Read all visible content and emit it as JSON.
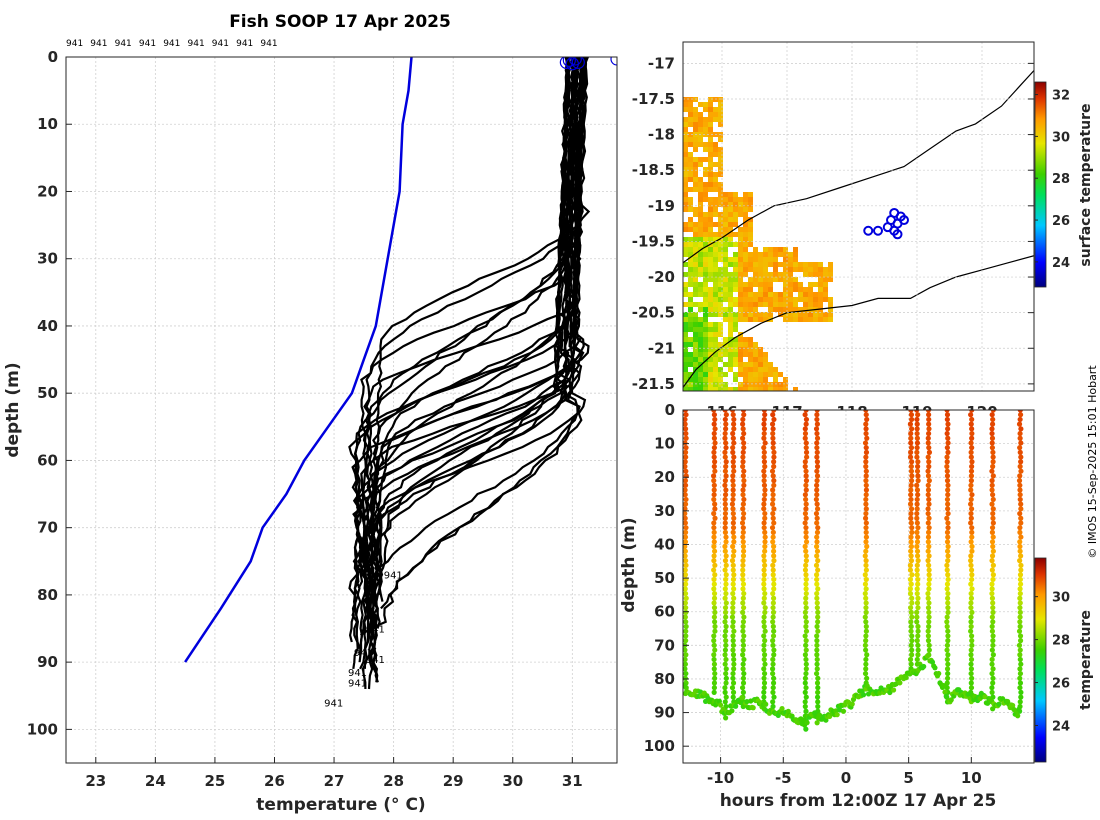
{
  "figure": {
    "title": "Fish SOOP 17 Apr 2025",
    "credit": "© IMOS 15-Sep-2025 15:01 Hobart",
    "colors": {
      "profile": "#000000",
      "climatology": "#0000dd",
      "markers": "#0000dd",
      "coast": "#000000"
    }
  },
  "chart_data": [
    {
      "type": "line",
      "name": "profiles",
      "title": "Fish SOOP 17 Apr 2025",
      "xlabel": "temperature (° C)",
      "ylabel": "depth (m)",
      "xlim": [
        22.5,
        31.75
      ],
      "ylim": [
        105,
        0
      ],
      "xticks": [
        "23",
        "24",
        "25",
        "26",
        "27",
        "28",
        "29",
        "30",
        "31"
      ],
      "yticks": [
        "0",
        "10",
        "20",
        "30",
        "40",
        "50",
        "60",
        "70",
        "80",
        "90",
        "100"
      ],
      "grid": true,
      "top_labels": [
        "941",
        "941",
        "941",
        "941",
        "941",
        "941",
        "941",
        "941",
        "941"
      ],
      "end_labels": [
        {
          "text": "941",
          "t": 27.8,
          "d": 77
        },
        {
          "text": "941",
          "t": 27.5,
          "d": 85
        },
        {
          "text": "941",
          "t": 27.3,
          "d": 88.5
        },
        {
          "text": "941",
          "t": 27.5,
          "d": 89.5
        },
        {
          "text": "941",
          "t": 27.2,
          "d": 91.5
        },
        {
          "text": "941",
          "t": 27.2,
          "d": 93
        },
        {
          "text": "941",
          "t": 26.8,
          "d": 96
        }
      ],
      "climatology": {
        "name": "climatology",
        "points": [
          [
            28.3,
            0
          ],
          [
            28.25,
            5
          ],
          [
            28.15,
            10
          ],
          [
            28.1,
            20
          ],
          [
            27.9,
            30
          ],
          [
            27.7,
            40
          ],
          [
            27.5,
            45
          ],
          [
            27.3,
            50
          ],
          [
            26.9,
            55
          ],
          [
            26.5,
            60
          ],
          [
            26.2,
            65
          ],
          [
            25.8,
            70
          ],
          [
            25.6,
            75
          ],
          [
            25.1,
            82
          ],
          [
            24.5,
            90
          ]
        ]
      },
      "profile_count": 28,
      "surface_markers": [
        [
          30.95,
          0.5
        ],
        [
          31.05,
          0.3
        ],
        [
          31.1,
          0.8
        ],
        [
          30.9,
          0.8
        ],
        [
          31.0,
          1.0
        ],
        [
          31.75,
          0.3
        ]
      ]
    },
    {
      "type": "heatmap",
      "name": "map",
      "xlabel": "",
      "ylabel": "",
      "xlim": [
        115.4,
        120.8
      ],
      "ylim": [
        -21.6,
        -16.7
      ],
      "xticks": [
        "116",
        "117",
        "118",
        "119",
        "120"
      ],
      "yticks": [
        "-17",
        "-17.5",
        "-18",
        "-18.5",
        "-19",
        "-19.5",
        "-20",
        "-20.5",
        "-21",
        "-21.5"
      ],
      "colorbar": {
        "label": "surface temperature",
        "ticks": [
          "24",
          "26",
          "28",
          "30",
          "32"
        ],
        "range": [
          22.8,
          32.6
        ]
      },
      "track": [
        [
          118.25,
          -19.35
        ],
        [
          118.4,
          -19.35
        ],
        [
          118.55,
          -19.3
        ],
        [
          118.6,
          -19.2
        ],
        [
          118.65,
          -19.1
        ],
        [
          118.7,
          -19.25
        ],
        [
          118.75,
          -19.15
        ],
        [
          118.8,
          -19.2
        ],
        [
          118.65,
          -19.35
        ],
        [
          118.7,
          -19.4
        ]
      ],
      "coast_upper": [
        [
          115.4,
          -19.8
        ],
        [
          115.7,
          -19.6
        ],
        [
          116.0,
          -19.45
        ],
        [
          116.4,
          -19.2
        ],
        [
          116.8,
          -19.0
        ],
        [
          117.3,
          -18.9
        ],
        [
          117.8,
          -18.75
        ],
        [
          118.3,
          -18.6
        ],
        [
          118.8,
          -18.45
        ],
        [
          119.2,
          -18.2
        ],
        [
          119.6,
          -17.95
        ],
        [
          119.9,
          -17.85
        ],
        [
          120.3,
          -17.6
        ],
        [
          120.6,
          -17.3
        ],
        [
          120.8,
          -17.1
        ]
      ],
      "coast_lower": [
        [
          115.4,
          -21.55
        ],
        [
          115.6,
          -21.3
        ],
        [
          115.9,
          -21.05
        ],
        [
          116.2,
          -20.85
        ],
        [
          116.6,
          -20.65
        ],
        [
          117.0,
          -20.5
        ],
        [
          117.5,
          -20.45
        ],
        [
          118.0,
          -20.4
        ],
        [
          118.4,
          -20.3
        ],
        [
          118.9,
          -20.3
        ],
        [
          119.2,
          -20.15
        ],
        [
          119.6,
          -20.0
        ],
        [
          120.0,
          -19.9
        ],
        [
          120.4,
          -19.8
        ],
        [
          120.8,
          -19.7
        ]
      ]
    },
    {
      "type": "scatter",
      "name": "section",
      "xlabel": "hours from 12:00Z 17 Apr 25",
      "ylabel": "depth (m)",
      "xlim": [
        -13,
        15
      ],
      "ylim": [
        105,
        0
      ],
      "xticks": [
        "-10",
        "-5",
        "0",
        "5",
        "10"
      ],
      "yticks": [
        "0",
        "10",
        "20",
        "30",
        "40",
        "50",
        "60",
        "70",
        "80",
        "90",
        "100"
      ],
      "colorbar": {
        "label": "temperature",
        "ticks": [
          "24",
          "26",
          "28",
          "30"
        ],
        "range": [
          22.3,
          31.8
        ]
      },
      "casts": [
        {
          "t": -12.8,
          "bottom": 83
        },
        {
          "t": -10.5,
          "bottom": 85
        },
        {
          "t": -9.6,
          "bottom": 91
        },
        {
          "t": -9.0,
          "bottom": 88
        },
        {
          "t": -8.2,
          "bottom": 89
        },
        {
          "t": -6.5,
          "bottom": 88
        },
        {
          "t": -5.8,
          "bottom": 90
        },
        {
          "t": -3.2,
          "bottom": 93
        },
        {
          "t": -2.3,
          "bottom": 92
        },
        {
          "t": 1.6,
          "bottom": 83
        },
        {
          "t": 5.2,
          "bottom": 78
        },
        {
          "t": 5.7,
          "bottom": 77
        },
        {
          "t": 6.6,
          "bottom": 74
        },
        {
          "t": 8.1,
          "bottom": 86
        },
        {
          "t": 10.0,
          "bottom": 86
        },
        {
          "t": 11.7,
          "bottom": 88
        },
        {
          "t": 13.9,
          "bottom": 90
        }
      ],
      "bottom_track": [
        [
          -13,
          83
        ],
        [
          -12,
          84
        ],
        [
          -11,
          86
        ],
        [
          -10,
          88
        ],
        [
          -9.6,
          91
        ],
        [
          -9,
          88
        ],
        [
          -8.5,
          86
        ],
        [
          -8,
          88
        ],
        [
          -7,
          87
        ],
        [
          -6.5,
          88
        ],
        [
          -5.8,
          90
        ],
        [
          -5,
          90
        ],
        [
          -4,
          92
        ],
        [
          -3.2,
          94
        ],
        [
          -2.8,
          90
        ],
        [
          -2.3,
          92
        ],
        [
          -1.5,
          91
        ],
        [
          -0.5,
          89
        ],
        [
          0.5,
          87
        ],
        [
          1.2,
          84
        ],
        [
          1.6,
          83
        ],
        [
          2.5,
          84
        ],
        [
          3.5,
          83
        ],
        [
          4.5,
          80
        ],
        [
          5.2,
          78
        ],
        [
          5.7,
          77
        ],
        [
          6.6,
          74
        ],
        [
          7.5,
          80
        ],
        [
          8.1,
          86
        ],
        [
          9.0,
          84
        ],
        [
          10.0,
          86
        ],
        [
          11.0,
          85
        ],
        [
          11.7,
          88
        ],
        [
          12.5,
          86
        ],
        [
          13.2,
          89
        ],
        [
          13.9,
          90
        ]
      ]
    }
  ]
}
